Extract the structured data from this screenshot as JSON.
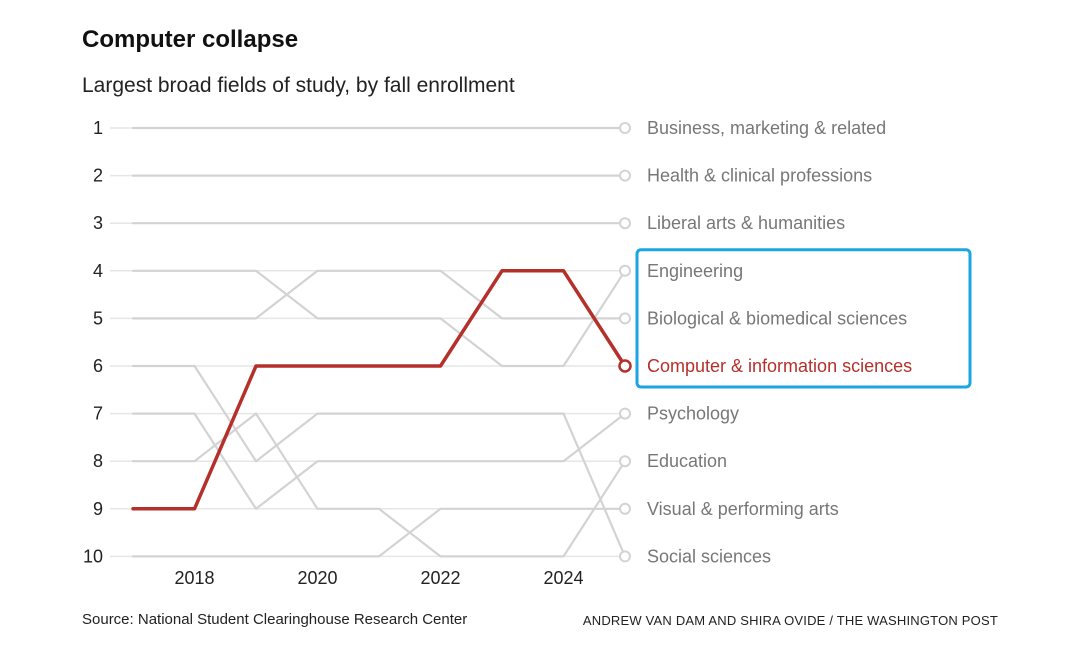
{
  "title": "Computer collapse",
  "subtitle": "Largest broad fields of study, by fall enrollment",
  "source": "Source: National Student Clearinghouse Research Center",
  "credit": "ANDREW VAN DAM AND SHIRA OVIDE / THE WASHINGTON POST",
  "colors": {
    "highlight": "#b5302a",
    "other_lines": "#d3d3d3",
    "gridline": "#e6e6e6",
    "highlight_box": "#1aa6e0",
    "label_gray": "#777777"
  },
  "chart_data": {
    "type": "line",
    "x": [
      2017,
      2018,
      2019,
      2020,
      2021,
      2022,
      2023,
      2024,
      2025
    ],
    "x_tick_labels": [
      "2018",
      "2020",
      "2022",
      "2024"
    ],
    "x_ticks": [
      2018,
      2020,
      2022,
      2024
    ],
    "y_tick_labels": [
      "1",
      "2",
      "3",
      "4",
      "5",
      "6",
      "7",
      "8",
      "9",
      "10"
    ],
    "y_axis": "rank",
    "ylim": [
      1,
      10
    ],
    "y_inverted": true,
    "grid": true,
    "series": [
      {
        "name": "Business, marketing & related",
        "values": [
          1,
          1,
          1,
          1,
          1,
          1,
          1,
          1,
          1
        ],
        "highlight": false
      },
      {
        "name": "Health & clinical professions",
        "values": [
          2,
          2,
          2,
          2,
          2,
          2,
          2,
          2,
          2
        ],
        "highlight": false
      },
      {
        "name": "Liberal arts & humanities",
        "values": [
          3,
          3,
          3,
          3,
          3,
          3,
          3,
          3,
          3
        ],
        "highlight": false
      },
      {
        "name": "Engineering",
        "values": [
          4,
          4,
          4,
          5,
          5,
          5,
          6,
          6,
          4
        ],
        "highlight": false
      },
      {
        "name": "Biological & biomedical sciences",
        "values": [
          5,
          5,
          5,
          4,
          4,
          4,
          5,
          5,
          5
        ],
        "highlight": false
      },
      {
        "name": "Computer & information sciences",
        "values": [
          9,
          9,
          6,
          6,
          6,
          6,
          4,
          4,
          6
        ],
        "highlight": true
      },
      {
        "name": "Psychology",
        "values": [
          7,
          7,
          9,
          8,
          8,
          8,
          8,
          8,
          7
        ],
        "highlight": false
      },
      {
        "name": "Education",
        "values": [
          8,
          8,
          7,
          9,
          9,
          10,
          10,
          10,
          8
        ],
        "highlight": false
      },
      {
        "name": "Visual & performing arts",
        "values": [
          10,
          10,
          10,
          10,
          10,
          9,
          9,
          9,
          9
        ],
        "highlight": false
      },
      {
        "name": "Social sciences",
        "values": [
          6,
          6,
          8,
          7,
          7,
          7,
          7,
          7,
          10
        ],
        "highlight": false
      }
    ],
    "end_labels": [
      {
        "text": "Business, marketing & related",
        "rank": 1
      },
      {
        "text": "Health & clinical professions",
        "rank": 2
      },
      {
        "text": "Liberal arts & humanities",
        "rank": 3
      },
      {
        "text": "Engineering",
        "rank": 4
      },
      {
        "text": "Biological & biomedical sciences",
        "rank": 5
      },
      {
        "text": "Computer & information sciences",
        "rank": 6
      },
      {
        "text": "Psychology",
        "rank": 7
      },
      {
        "text": "Education",
        "rank": 8
      },
      {
        "text": "Visual & performing arts",
        "rank": 9
      },
      {
        "text": "Social sciences",
        "rank": 10
      }
    ],
    "highlight_box_ranks": [
      4,
      6
    ]
  }
}
